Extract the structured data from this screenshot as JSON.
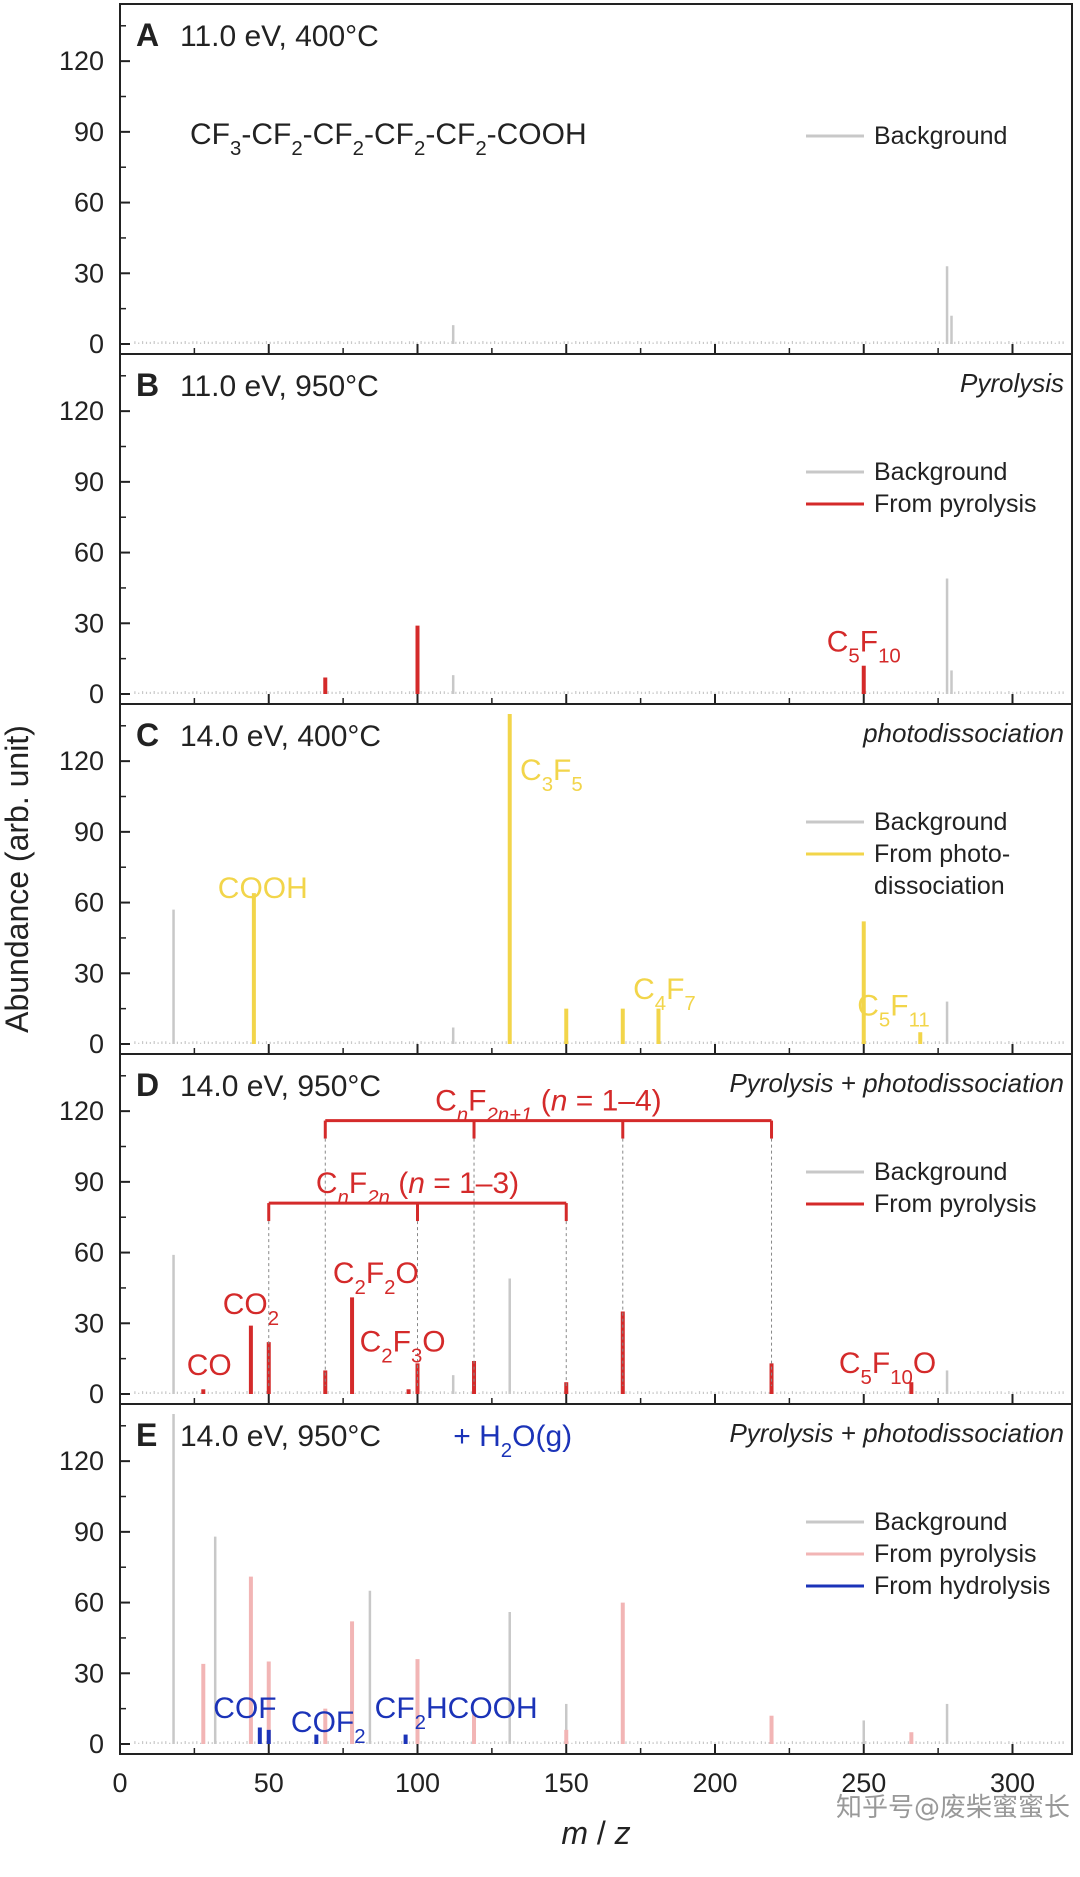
{
  "figure": {
    "xlabel_italic_m": "m",
    "xlabel_slash": " / ",
    "xlabel_italic_z": "z",
    "ylabel": "Abundance (arb. unit)",
    "xticks": [
      "0",
      "50",
      "100",
      "150",
      "200",
      "250",
      "300"
    ],
    "yticks": [
      "0",
      "30",
      "60",
      "90",
      "120"
    ],
    "watermark": "知乎号@废柴蜜蜜长"
  },
  "colors": {
    "background": "#c8c8c8",
    "pyrolysis": "#d42a2a",
    "pyrolysis_faint": "#f2b5b5",
    "photo": "#f2d54a",
    "hydrolysis": "#1b33b8",
    "axis": "#222222"
  },
  "chart_data": [
    {
      "type": "bar",
      "panel": "A",
      "title": "11.0 eV, 400°C",
      "process": "",
      "xlim": [
        0,
        320
      ],
      "ylim": [
        0,
        140
      ],
      "legend_position": "right",
      "legend": [
        {
          "name": "Background",
          "color": "background"
        }
      ],
      "formula": [
        "CF",
        "3",
        "-CF",
        "2",
        "-CF",
        "2",
        "-CF",
        "2",
        "-CF",
        "2",
        "-COOH"
      ],
      "series": [
        {
          "name": "Background",
          "color": "background",
          "x": [
            112,
            278,
            279.5
          ],
          "values": [
            8,
            33,
            12
          ]
        }
      ],
      "annotations": []
    },
    {
      "type": "bar",
      "panel": "B",
      "title": "11.0 eV, 950°C",
      "process": "Pyrolysis",
      "xlim": [
        0,
        320
      ],
      "ylim": [
        0,
        140
      ],
      "legend_position": "right",
      "legend": [
        {
          "name": "Background",
          "color": "background"
        },
        {
          "name": "From pyrolysis",
          "color": "pyrolysis"
        }
      ],
      "series": [
        {
          "name": "Background",
          "color": "background",
          "x": [
            112,
            278,
            279.5
          ],
          "values": [
            8,
            49,
            10
          ]
        },
        {
          "name": "From pyrolysis",
          "color": "pyrolysis",
          "x": [
            69,
            100,
            250
          ],
          "values": [
            7,
            29,
            12
          ]
        }
      ],
      "annotations": [
        {
          "x": 250,
          "y": 18,
          "color": "pyrolysis",
          "parts": [
            "C",
            "5",
            "F",
            "10"
          ]
        }
      ]
    },
    {
      "type": "bar",
      "panel": "C",
      "title": "14.0 eV, 400°C",
      "process": "photodissociation",
      "xlim": [
        0,
        320
      ],
      "ylim": [
        0,
        140
      ],
      "legend_position": "right",
      "legend": [
        {
          "name": "Background",
          "color": "background"
        },
        {
          "name": "From photo-",
          "color": "photo"
        },
        {
          "name": "dissociation",
          "color": ""
        }
      ],
      "series": [
        {
          "name": "Background",
          "color": "background",
          "x": [
            18,
            112,
            278
          ],
          "values": [
            57,
            7,
            18
          ]
        },
        {
          "name": "From photo-dissociation",
          "color": "photo",
          "x": [
            45,
            131,
            150,
            169,
            181,
            250,
            269
          ],
          "values": [
            64,
            140,
            15,
            15,
            15,
            52,
            5
          ]
        }
      ],
      "annotations": [
        {
          "x": 48,
          "y": 62,
          "color": "photo",
          "parts": [
            "COOH"
          ]
        },
        {
          "x": 145,
          "y": 112,
          "color": "photo",
          "parts": [
            "C",
            "3",
            "F",
            "5"
          ]
        },
        {
          "x": 183,
          "y": 19,
          "color": "photo",
          "parts": [
            "C",
            "4",
            "F",
            "7"
          ]
        },
        {
          "x": 260,
          "y": 12,
          "color": "photo",
          "parts": [
            "C",
            "5",
            "F",
            "11"
          ]
        }
      ]
    },
    {
      "type": "bar",
      "panel": "D",
      "title": "14.0 eV, 950°C",
      "process": "Pyrolysis + photodissociation",
      "xlim": [
        0,
        320
      ],
      "ylim": [
        0,
        140
      ],
      "legend_position": "right",
      "legend": [
        {
          "name": "Background",
          "color": "background"
        },
        {
          "name": "From pyrolysis",
          "color": "pyrolysis"
        }
      ],
      "series": [
        {
          "name": "Background",
          "color": "background",
          "x": [
            18,
            131,
            112,
            278
          ],
          "values": [
            59,
            49,
            8,
            10
          ]
        },
        {
          "name": "From pyrolysis",
          "color": "pyrolysis",
          "x": [
            28,
            44,
            50,
            69,
            78,
            97,
            100,
            119,
            150,
            169,
            219,
            266
          ],
          "values": [
            2,
            29,
            22,
            10,
            41,
            2,
            13,
            14,
            5,
            35,
            13,
            5
          ]
        }
      ],
      "annotations": [
        {
          "x": 30,
          "y": 8,
          "color": "pyrolysis",
          "parts": [
            "CO"
          ]
        },
        {
          "x": 44,
          "y": 34,
          "color": "pyrolysis",
          "parts": [
            "CO",
            "2"
          ]
        },
        {
          "x": 86,
          "y": 47,
          "color": "pyrolysis",
          "parts": [
            "C",
            "2",
            "F",
            "2",
            "O"
          ]
        },
        {
          "x": 95,
          "y": 18,
          "color": "pyrolysis",
          "parts": [
            "C",
            "2",
            "F",
            "3",
            "O"
          ]
        },
        {
          "x": 258,
          "y": 9,
          "color": "pyrolysis",
          "parts": [
            "C",
            "5",
            "F",
            "10",
            "O"
          ]
        }
      ],
      "brackets": [
        {
          "label": [
            "C",
            "n",
            "F",
            "2n+1",
            " (",
            "n",
            " = 1–4)"
          ],
          "y": 116,
          "x_marks": [
            69,
            119,
            169,
            219
          ],
          "color": "pyrolysis"
        },
        {
          "label": [
            "C",
            "n",
            "F",
            "2n",
            " (",
            "n",
            " = 1–3)"
          ],
          "y": 81,
          "x_marks": [
            50,
            100,
            150
          ],
          "color": "pyrolysis"
        }
      ]
    },
    {
      "type": "bar",
      "panel": "E",
      "title": "14.0 eV, 950°C",
      "process": "Pyrolysis + photodissociation",
      "xlim": [
        0,
        320
      ],
      "ylim": [
        0,
        140
      ],
      "legend_position": "right",
      "legend": [
        {
          "name": "Background",
          "color": "background"
        },
        {
          "name": "From pyrolysis",
          "color": "pyrolysis_faint"
        },
        {
          "name": "From hydrolysis",
          "color": "hydrolysis"
        }
      ],
      "header_extra": [
        "+ H",
        "2",
        "O(g)"
      ],
      "series": [
        {
          "name": "Background",
          "color": "background",
          "x": [
            18,
            32,
            84,
            131,
            150,
            250,
            278
          ],
          "values": [
            140,
            88,
            65,
            56,
            17,
            10,
            17
          ]
        },
        {
          "name": "From pyrolysis",
          "color": "pyrolysis_faint",
          "x": [
            28,
            44,
            50,
            69,
            78,
            100,
            119,
            150,
            169,
            219,
            266
          ],
          "values": [
            34,
            71,
            35,
            15,
            52,
            36,
            13,
            6,
            60,
            12,
            5
          ]
        },
        {
          "name": "From hydrolysis",
          "color": "hydrolysis",
          "x": [
            47,
            50,
            66,
            96
          ],
          "values": [
            7,
            6,
            4,
            4
          ]
        }
      ],
      "annotations": [
        {
          "x": 42,
          "y": 11,
          "color": "hydrolysis",
          "parts": [
            "COF"
          ]
        },
        {
          "x": 70,
          "y": 5,
          "color": "hydrolysis",
          "parts": [
            "COF",
            "2"
          ]
        },
        {
          "x": 113,
          "y": 11,
          "color": "hydrolysis",
          "parts": [
            "CF",
            "2",
            "HCOOH"
          ]
        }
      ]
    }
  ]
}
